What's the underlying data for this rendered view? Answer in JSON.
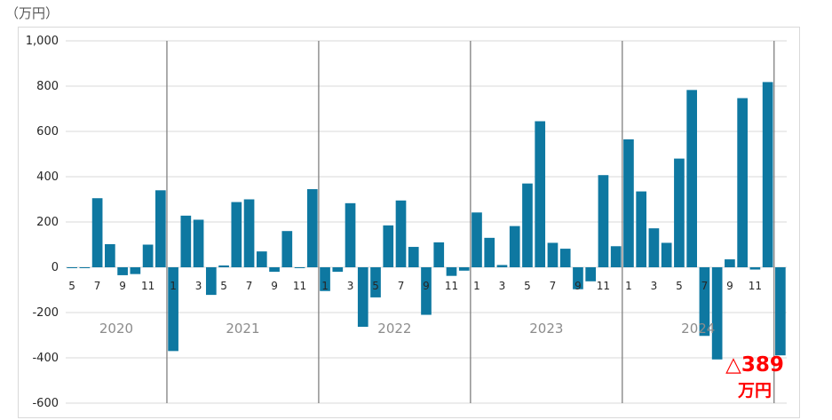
{
  "unit_label": "（万円）",
  "callout": {
    "value": "△389",
    "unit": "万円"
  },
  "colors": {
    "bar": "#0e78a1",
    "grid": "#d9d9d9",
    "separator": "#808080",
    "callout": "#ff0000"
  },
  "chart_data": {
    "type": "bar",
    "ylim": [
      -600,
      1000
    ],
    "yticks": [
      "1,000",
      "800",
      "600",
      "400",
      "200",
      "0",
      "-200",
      "-400",
      "-600"
    ],
    "ytick_values": [
      1000,
      800,
      600,
      400,
      200,
      0,
      -200,
      -400,
      -600
    ],
    "grid": true,
    "years": [
      "2020",
      "2021",
      "2022",
      "2023",
      "2024"
    ],
    "categories": [
      "2020-05",
      "2020-06",
      "2020-07",
      "2020-08",
      "2020-09",
      "2020-10",
      "2020-11",
      "2020-12",
      "2021-01",
      "2021-02",
      "2021-03",
      "2021-04",
      "2021-05",
      "2021-06",
      "2021-07",
      "2021-08",
      "2021-09",
      "2021-10",
      "2021-11",
      "2021-12",
      "2022-01",
      "2022-02",
      "2022-03",
      "2022-04",
      "2022-05",
      "2022-06",
      "2022-07",
      "2022-08",
      "2022-09",
      "2022-10",
      "2022-11",
      "2022-12",
      "2023-01",
      "2023-02",
      "2023-03",
      "2023-04",
      "2023-05",
      "2023-06",
      "2023-07",
      "2023-08",
      "2023-09",
      "2023-10",
      "2023-11",
      "2023-12",
      "2024-01",
      "2024-02",
      "2024-03",
      "2024-04",
      "2024-05",
      "2024-06",
      "2024-07",
      "2024-08",
      "2024-09",
      "2024-10",
      "2024-11",
      "2024-12",
      "2025-01"
    ],
    "month_labels": [
      "5",
      "",
      "7",
      "",
      "9",
      "",
      "11",
      "",
      "1",
      "",
      "3",
      "",
      "5",
      "",
      "7",
      "",
      "9",
      "",
      "11",
      "",
      "1",
      "",
      "3",
      "",
      "5",
      "",
      "7",
      "",
      "9",
      "",
      "11",
      "",
      "1",
      "",
      "3",
      "",
      "5",
      "",
      "7",
      "",
      "9",
      "",
      "11",
      "",
      "1",
      "",
      "3",
      "",
      "5",
      "",
      "7",
      "",
      "9",
      "",
      "11",
      "",
      ""
    ],
    "values": [
      0,
      -3,
      305,
      102,
      -35,
      -30,
      100,
      340,
      -370,
      228,
      210,
      -122,
      8,
      288,
      300,
      70,
      -20,
      160,
      0,
      345,
      -105,
      -20,
      283,
      -263,
      -133,
      185,
      295,
      90,
      -210,
      110,
      -38,
      -15,
      242,
      130,
      10,
      182,
      370,
      645,
      108,
      82,
      -97,
      -62,
      407,
      93,
      565,
      335,
      172,
      108,
      480,
      783,
      -303,
      -407,
      35,
      747,
      -10,
      818,
      -389
    ]
  }
}
